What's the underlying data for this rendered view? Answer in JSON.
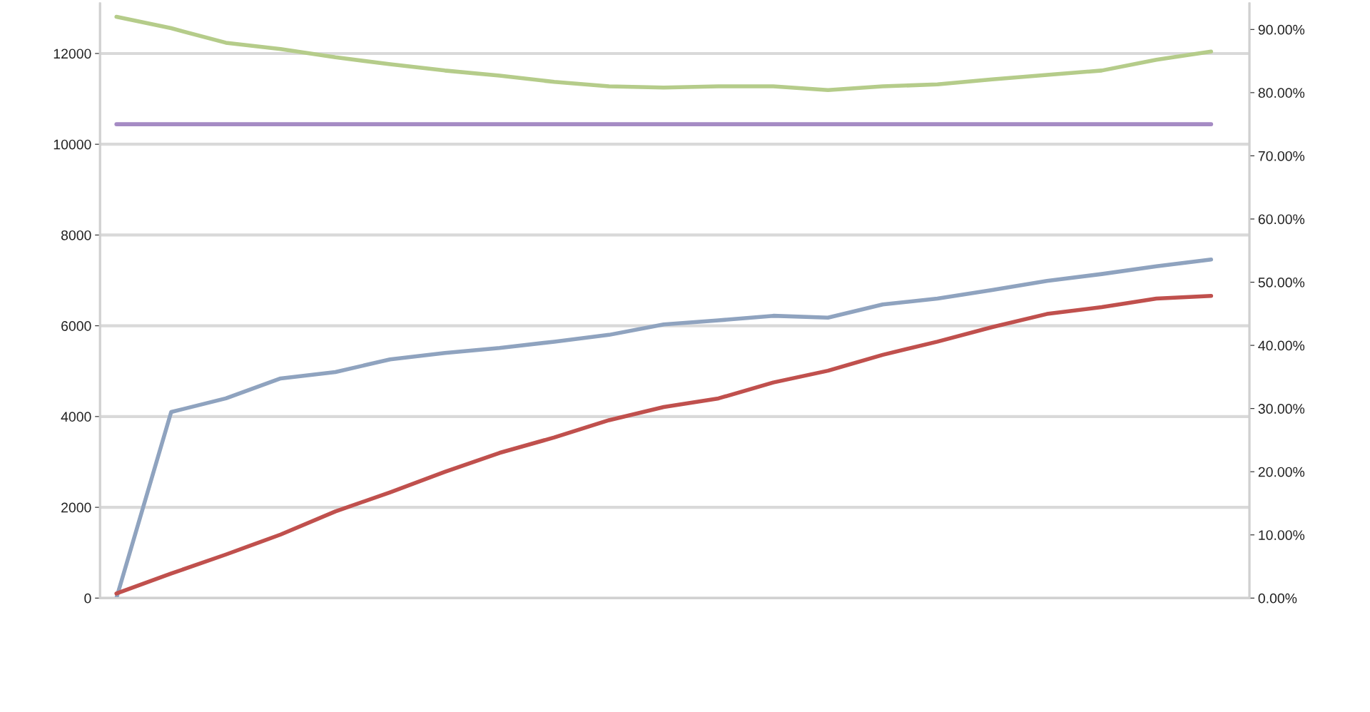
{
  "chart_data": {
    "type": "line",
    "categories": [
      null,
      null,
      null,
      null,
      null,
      null,
      null,
      null,
      null,
      null,
      null,
      null,
      null,
      null,
      null,
      null,
      null,
      null,
      null,
      null,
      null
    ],
    "series": [
      {
        "color": "#8fa3bf",
        "values": [
          0,
          4100,
          4400,
          4840,
          4980,
          5260,
          5400,
          5510,
          5650,
          5800,
          6030,
          6120,
          6220,
          6180,
          6470,
          6600,
          6790,
          6990,
          7140,
          7310,
          7460
        ]
      },
      {
        "color": "#c0504d",
        "values": [
          100,
          540,
          960,
          1400,
          1910,
          2330,
          2780,
          3200,
          3540,
          3920,
          4210,
          4400,
          4750,
          5010,
          5360,
          5650,
          5970,
          6260,
          6410,
          6600,
          6660
        ]
      },
      {
        "color": "#b5cc8a",
        "axis": "y2",
        "values": [
          92.0,
          90.2,
          87.9,
          86.9,
          85.6,
          84.5,
          83.5,
          82.7,
          81.7,
          81.0,
          80.8,
          81.0,
          81.0,
          80.4,
          81.0,
          81.3,
          82.1,
          82.8,
          83.5,
          85.2,
          86.5
        ]
      },
      {
        "color": "#a58bc4",
        "axis": "y2",
        "values": [
          75,
          75,
          75,
          75,
          75,
          75,
          75,
          75,
          75,
          75,
          75,
          75,
          75,
          75,
          75,
          75,
          75,
          75,
          75,
          75,
          75
        ]
      }
    ],
    "ylim": [
      0,
      13100
    ],
    "yticks": [
      0,
      2000,
      4000,
      6000,
      8000,
      10000,
      12000
    ],
    "y2lim": [
      0,
      94.1
    ],
    "y2ticks": [
      {
        "value": 0,
        "label": "0.00%"
      },
      {
        "value": 10,
        "label": "10.00%"
      },
      {
        "value": 20,
        "label": "20.00%"
      },
      {
        "value": 30,
        "label": "30.00%"
      },
      {
        "value": 40,
        "label": "40.00%"
      },
      {
        "value": 50,
        "label": "50.00%"
      },
      {
        "value": 60,
        "label": "60.00%"
      },
      {
        "value": 70,
        "label": "70.00%"
      },
      {
        "value": 80,
        "label": "80.00%"
      },
      {
        "value": 90,
        "label": "90.00%"
      }
    ],
    "grid": "y",
    "marker": "none",
    "line_style": "solid"
  }
}
